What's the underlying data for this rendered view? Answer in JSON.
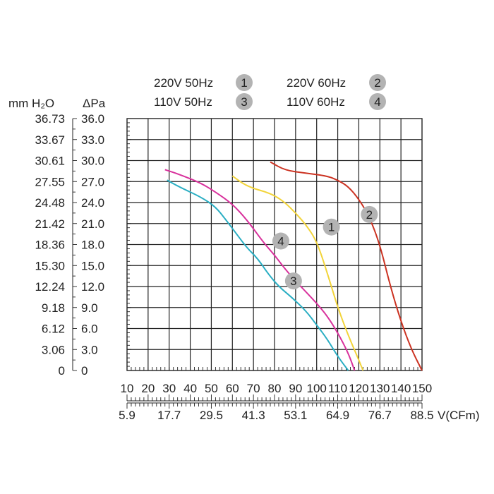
{
  "chart_data": {
    "type": "line",
    "title": "",
    "y_left_label": "mm H₂O",
    "y_right_label": "ΔPa",
    "x_secondary_label": "V(CFm)",
    "x_primary_ticks": [
      "10",
      "20",
      "30",
      "40",
      "50",
      "60",
      "70",
      "80",
      "90",
      "100",
      "110",
      "120",
      "130",
      "140",
      "150"
    ],
    "x_secondary_ticks": [
      "5.9",
      "17.7",
      "29.5",
      "41.3",
      "53.1",
      "64.9",
      "76.7",
      "88.5"
    ],
    "y_left_ticks": [
      "0",
      "3.06",
      "6.12",
      "9.18",
      "12.24",
      "15.30",
      "18.36",
      "21.42",
      "24.48",
      "27.55",
      "30.61",
      "33.67",
      "36.73"
    ],
    "y_right_ticks": [
      "0",
      "3.0",
      "6.0",
      "9.0",
      "12.0",
      "15.0",
      "18.0",
      "21.0",
      "24.0",
      "27.0",
      "30.0",
      "33.0",
      "36.0"
    ],
    "xlim": [
      10,
      150
    ],
    "ylim": [
      0,
      36
    ],
    "grid": true,
    "legend": [
      {
        "text": "220V 50Hz",
        "badge": "1"
      },
      {
        "text": "220V 60Hz",
        "badge": "2"
      },
      {
        "text": "110V 50Hz",
        "badge": "3"
      },
      {
        "text": "110V 60Hz",
        "badge": "4"
      }
    ],
    "series": [
      {
        "badge": "1",
        "color": "#f2d43a",
        "label_at": [
          107,
          20.5
        ],
        "points": [
          [
            60,
            27.8
          ],
          [
            65,
            26.7
          ],
          [
            70,
            26.0
          ],
          [
            75,
            25.6
          ],
          [
            80,
            25.0
          ],
          [
            85,
            24.0
          ],
          [
            90,
            22.5
          ],
          [
            95,
            20.8
          ],
          [
            100,
            18.5
          ],
          [
            105,
            14.0
          ],
          [
            110,
            9.0
          ],
          [
            115,
            5.0
          ],
          [
            120,
            1.5
          ],
          [
            122,
            0
          ]
        ]
      },
      {
        "badge": "2",
        "color": "#cc3322",
        "label_at": [
          125,
          22.3
        ],
        "points": [
          [
            78,
            29.8
          ],
          [
            85,
            28.6
          ],
          [
            95,
            28.2
          ],
          [
            105,
            27.8
          ],
          [
            110,
            27.2
          ],
          [
            115,
            26.3
          ],
          [
            120,
            24.5
          ],
          [
            125,
            22.0
          ],
          [
            130,
            18.0
          ],
          [
            135,
            12.0
          ],
          [
            140,
            7.0
          ],
          [
            145,
            3.0
          ],
          [
            150,
            0
          ]
        ]
      },
      {
        "badge": "3",
        "color": "#2aaec3",
        "label_at": [
          89,
          12.8
        ],
        "points": [
          [
            29,
            27.2
          ],
          [
            35,
            26.2
          ],
          [
            45,
            24.8
          ],
          [
            52,
            23.4
          ],
          [
            57,
            21.5
          ],
          [
            62,
            19.5
          ],
          [
            67,
            17.5
          ],
          [
            72,
            16.0
          ],
          [
            77,
            13.8
          ],
          [
            82,
            12.0
          ],
          [
            88,
            10.5
          ],
          [
            95,
            8.5
          ],
          [
            100,
            6.5
          ],
          [
            105,
            4.5
          ],
          [
            110,
            2.0
          ],
          [
            115,
            0
          ]
        ]
      },
      {
        "badge": "4",
        "color": "#d8319c",
        "label_at": [
          83,
          18.5
        ],
        "points": [
          [
            28,
            28.7
          ],
          [
            35,
            28.0
          ],
          [
            45,
            26.8
          ],
          [
            52,
            25.5
          ],
          [
            60,
            23.8
          ],
          [
            67,
            21.5
          ],
          [
            75,
            18.2
          ],
          [
            80,
            16.5
          ],
          [
            85,
            14.5
          ],
          [
            90,
            12.8
          ],
          [
            95,
            11.2
          ],
          [
            100,
            9.6
          ],
          [
            105,
            7.8
          ],
          [
            110,
            5.4
          ],
          [
            115,
            2.5
          ],
          [
            118,
            0
          ]
        ]
      }
    ]
  }
}
